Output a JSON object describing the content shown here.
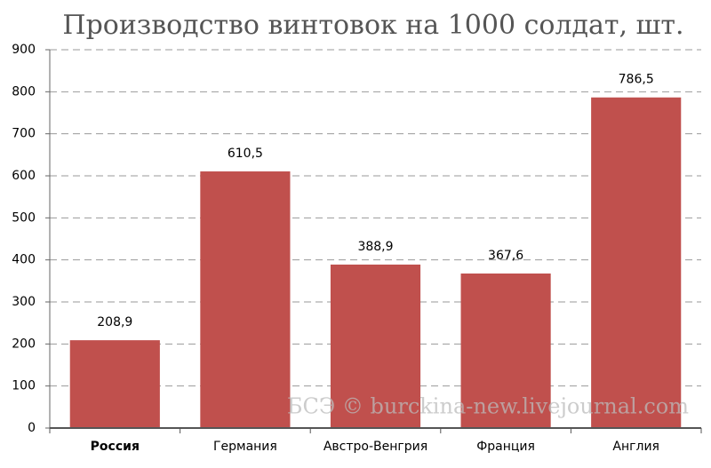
{
  "chart_data": {
    "type": "bar",
    "title": "Производство винтовок на 1000 солдат, шт.",
    "categories": [
      "Россия",
      "Германия",
      "Австро-Венгрия",
      "Франция",
      "Англия"
    ],
    "values": [
      208.9,
      610.5,
      388.9,
      367.6,
      786.5
    ],
    "value_labels": [
      "208,9",
      "610,5",
      "388,9",
      "367,6",
      "786,5"
    ],
    "color": "#c0504d",
    "ylim": [
      0,
      900
    ],
    "yticks": [
      0,
      100,
      200,
      300,
      400,
      500,
      600,
      700,
      800,
      900
    ],
    "grid": true,
    "watermark": "БСЭ © burckina-new.livejournal.com"
  }
}
